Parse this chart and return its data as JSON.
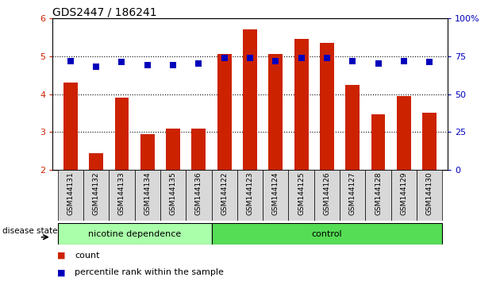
{
  "title": "GDS2447 / 186241",
  "samples": [
    "GSM144131",
    "GSM144132",
    "GSM144133",
    "GSM144134",
    "GSM144135",
    "GSM144136",
    "GSM144122",
    "GSM144123",
    "GSM144124",
    "GSM144125",
    "GSM144126",
    "GSM144127",
    "GSM144128",
    "GSM144129",
    "GSM144130"
  ],
  "counts": [
    4.3,
    2.45,
    3.9,
    2.95,
    3.1,
    3.1,
    5.05,
    5.7,
    5.05,
    5.45,
    5.35,
    4.25,
    3.47,
    3.95,
    3.5
  ],
  "percentile_ranks": [
    72,
    68,
    71,
    69,
    69,
    70,
    74,
    74,
    72,
    74,
    74,
    72,
    70,
    72,
    71
  ],
  "ylim": [
    2,
    6
  ],
  "yticks": [
    2,
    3,
    4,
    5,
    6
  ],
  "right_yticks": [
    0,
    25,
    50,
    75,
    100
  ],
  "right_ylabels": [
    "0",
    "25",
    "50",
    "75",
    "100%"
  ],
  "bar_color": "#cc2200",
  "dot_color": "#0000bb",
  "nicotine_color": "#aaffaa",
  "control_color": "#55dd55",
  "nicotine_label": "nicotine dependence",
  "control_label": "control",
  "disease_state_label": "disease state",
  "legend_count_label": "count",
  "legend_pct_label": "percentile rank within the sample",
  "tick_color_left": "#cc2200",
  "tick_color_right": "#0000bb",
  "n_nicotine": 6,
  "n_control": 9,
  "bar_width": 0.55,
  "dot_size": 35,
  "grid_yticks": [
    3,
    4,
    5
  ]
}
